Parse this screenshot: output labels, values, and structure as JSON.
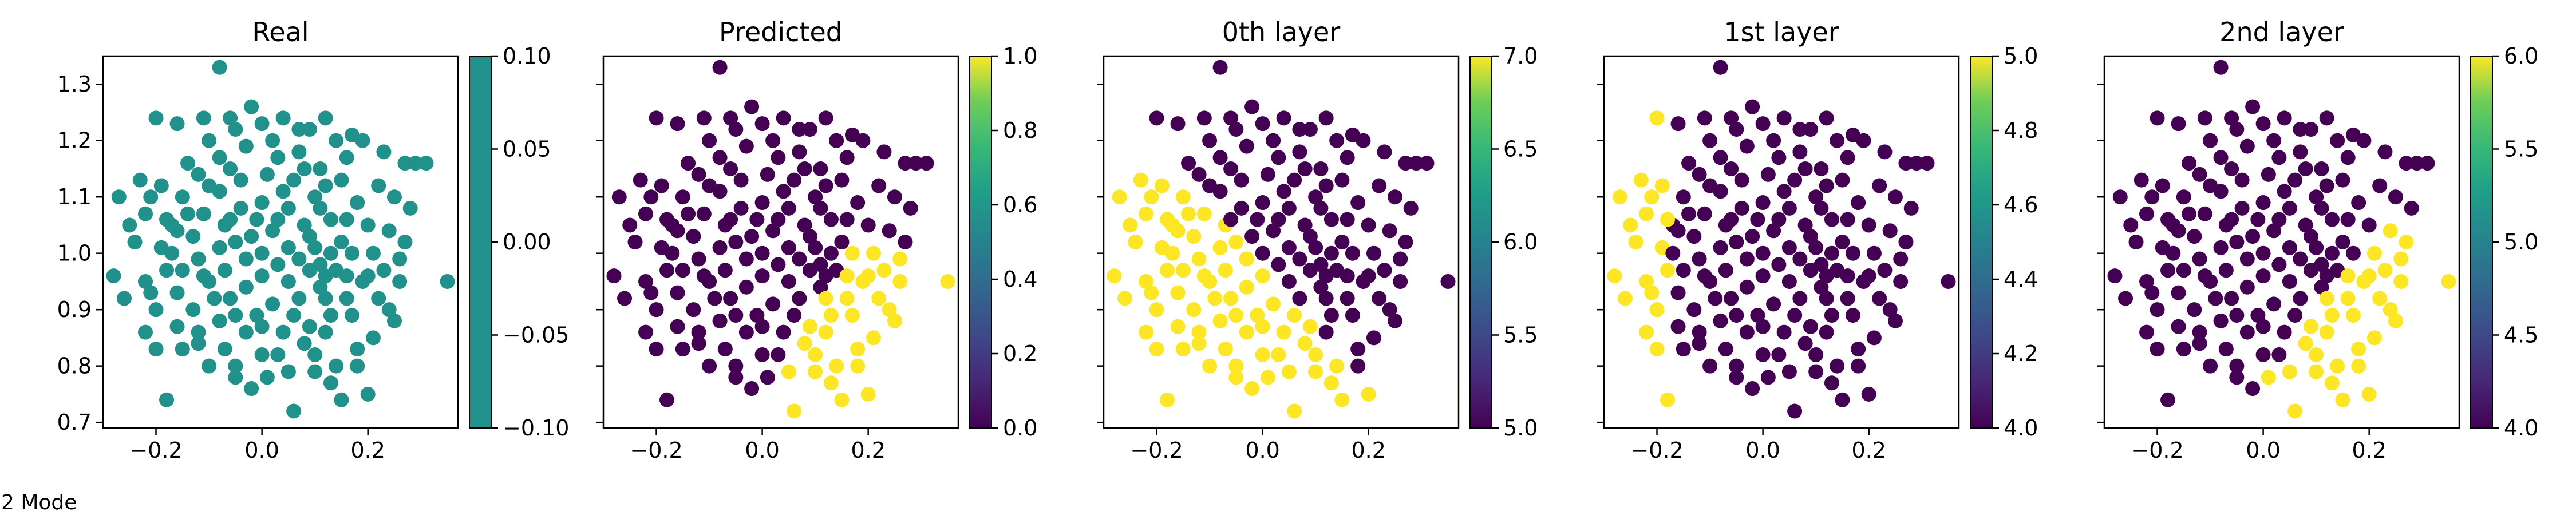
{
  "figure_caption": "2 Mode",
  "colors": {
    "viridis_low": "#440154",
    "viridis_mid": "#21918c",
    "viridis_high": "#fde725"
  },
  "chart_data": [
    {
      "type": "scatter",
      "title": "Real",
      "xlabel": "",
      "ylabel": "",
      "xlim": [
        -0.3,
        0.37
      ],
      "ylim": [
        0.69,
        1.35
      ],
      "xticks": [
        "−0.2",
        "0.0",
        "0.2"
      ],
      "yticks": [
        "0.7",
        "0.8",
        "0.9",
        "1.0",
        "1.1",
        "1.2",
        "1.3"
      ],
      "colorbar": {
        "range": [
          -0.1,
          0.1
        ],
        "ticks": [
          "−0.10",
          "−0.05",
          "0.00",
          "0.05",
          "0.10"
        ]
      },
      "coloring": "constant",
      "point_color": "#21918c"
    },
    {
      "type": "scatter",
      "title": "Predicted",
      "xlabel": "",
      "ylabel": "",
      "xlim": [
        -0.3,
        0.37
      ],
      "ylim": [
        0.69,
        1.35
      ],
      "xticks": [
        "−0.2",
        "0.0",
        "0.2"
      ],
      "colorbar": {
        "range": [
          0.0,
          1.0
        ],
        "ticks": [
          "0.0",
          "0.2",
          "0.4",
          "0.6",
          "0.8",
          "1.0"
        ]
      },
      "coloring": "two-class lower-right region yellow (cluster 1), rest purple (cluster 0)"
    },
    {
      "type": "scatter",
      "title": "0th layer",
      "xlabel": "",
      "ylabel": "",
      "xlim": [
        -0.3,
        0.37
      ],
      "ylim": [
        0.69,
        1.35
      ],
      "xticks": [
        "−0.2",
        "0.0",
        "0.2"
      ],
      "colorbar": {
        "range": [
          5.0,
          7.0
        ],
        "ticks": [
          "5.0",
          "5.5",
          "6.0",
          "6.5",
          "7.0"
        ]
      },
      "coloring": "lower-left half yellow (7), upper-right purple (5)"
    },
    {
      "type": "scatter",
      "title": "1st layer",
      "xlabel": "",
      "ylabel": "",
      "xlim": [
        -0.3,
        0.37
      ],
      "ylim": [
        0.69,
        1.35
      ],
      "xticks": [
        "−0.2",
        "0.0",
        "0.2"
      ],
      "colorbar": {
        "range": [
          4.0,
          5.0
        ],
        "ticks": [
          "4.0",
          "4.2",
          "4.4",
          "4.6",
          "4.8",
          "5.0"
        ]
      },
      "coloring": "left strip yellow (5), rest purple (4)"
    },
    {
      "type": "scatter",
      "title": "2nd layer",
      "xlabel": "",
      "ylabel": "",
      "xlim": [
        -0.3,
        0.37
      ],
      "ylim": [
        0.69,
        1.35
      ],
      "xticks": [
        "−0.2",
        "0.0",
        "0.2"
      ],
      "colorbar": {
        "range": [
          4.0,
          6.0
        ],
        "ticks": [
          "4.0",
          "4.5",
          "5.0",
          "5.5",
          "6.0"
        ]
      },
      "coloring": "lower-right region yellow (6), rest purple (4)"
    }
  ],
  "scatter_points": [
    [
      -0.08,
      1.33
    ],
    [
      -0.2,
      1.24
    ],
    [
      -0.16,
      1.23
    ],
    [
      -0.11,
      1.24
    ],
    [
      -0.05,
      1.22
    ],
    [
      0.04,
      1.24
    ],
    [
      0.09,
      1.22
    ],
    [
      0.14,
      1.2
    ],
    [
      0.19,
      1.2
    ],
    [
      0.23,
      1.18
    ],
    [
      0.29,
      1.16
    ],
    [
      0.31,
      1.16
    ],
    [
      0.27,
      1.16
    ],
    [
      -0.23,
      1.13
    ],
    [
      -0.27,
      1.1
    ],
    [
      -0.22,
      1.07
    ],
    [
      -0.17,
      1.05
    ],
    [
      -0.24,
      1.02
    ],
    [
      -0.28,
      0.96
    ],
    [
      -0.22,
      0.95
    ],
    [
      -0.26,
      0.92
    ],
    [
      -0.2,
      0.9
    ],
    [
      -0.22,
      0.86
    ],
    [
      -0.2,
      0.83
    ],
    [
      -0.15,
      0.83
    ],
    [
      -0.12,
      0.84
    ],
    [
      -0.1,
      0.8
    ],
    [
      -0.05,
      0.78
    ],
    [
      -0.02,
      0.76
    ],
    [
      0.03,
      0.82
    ],
    [
      0.05,
      0.79
    ],
    [
      0.1,
      0.82
    ],
    [
      0.14,
      0.8
    ],
    [
      0.18,
      0.83
    ],
    [
      0.21,
      0.85
    ],
    [
      0.25,
      0.88
    ],
    [
      0.26,
      0.95
    ],
    [
      0.35,
      0.95
    ],
    [
      0.2,
      0.96
    ],
    [
      -0.18,
      0.74
    ],
    [
      0.06,
      0.72
    ],
    [
      0.2,
      0.75
    ],
    [
      0.15,
      0.74
    ],
    [
      0.24,
      0.9
    ],
    [
      0.17,
      0.89
    ],
    [
      0.12,
      0.86
    ],
    [
      0.08,
      0.84
    ],
    [
      0.0,
      0.82
    ],
    [
      -0.03,
      0.86
    ],
    [
      -0.08,
      0.88
    ],
    [
      -0.13,
      0.9
    ],
    [
      -0.16,
      0.93
    ],
    [
      -0.18,
      0.97
    ],
    [
      -0.19,
      1.01
    ],
    [
      -0.18,
      1.06
    ],
    [
      -0.15,
      1.1
    ],
    [
      -0.12,
      1.14
    ],
    [
      -0.08,
      1.17
    ],
    [
      -0.03,
      1.19
    ],
    [
      0.02,
      1.2
    ],
    [
      0.07,
      1.18
    ],
    [
      0.11,
      1.15
    ],
    [
      0.15,
      1.13
    ],
    [
      0.18,
      1.09
    ],
    [
      0.2,
      1.05
    ],
    [
      0.21,
      1.0
    ],
    [
      0.19,
      0.95
    ],
    [
      0.16,
      0.92
    ],
    [
      0.13,
      0.89
    ],
    [
      0.09,
      0.87
    ],
    [
      0.04,
      0.86
    ],
    [
      -0.01,
      0.89
    ],
    [
      -0.06,
      0.92
    ],
    [
      -0.1,
      0.95
    ],
    [
      -0.12,
      0.99
    ],
    [
      -0.13,
      1.03
    ],
    [
      -0.11,
      1.07
    ],
    [
      -0.08,
      1.11
    ],
    [
      -0.04,
      1.13
    ],
    [
      0.01,
      1.14
    ],
    [
      0.06,
      1.13
    ],
    [
      0.1,
      1.1
    ],
    [
      0.13,
      1.06
    ],
    [
      0.15,
      1.02
    ],
    [
      0.14,
      0.97
    ],
    [
      0.11,
      0.94
    ],
    [
      0.07,
      0.92
    ],
    [
      0.02,
      0.91
    ],
    [
      -0.03,
      0.94
    ],
    [
      -0.07,
      0.97
    ],
    [
      -0.08,
      1.01
    ],
    [
      -0.07,
      1.05
    ],
    [
      -0.04,
      1.08
    ],
    [
      0.0,
      1.09
    ],
    [
      0.05,
      1.08
    ],
    [
      0.08,
      1.05
    ],
    [
      0.1,
      1.01
    ],
    [
      0.09,
      0.97
    ],
    [
      0.05,
      0.95
    ],
    [
      0.0,
      0.96
    ],
    [
      -0.03,
      0.99
    ],
    [
      -0.02,
      1.03
    ],
    [
      0.02,
      1.04
    ],
    [
      0.05,
      1.01
    ],
    [
      0.03,
      0.98
    ],
    [
      0.0,
      1.0
    ],
    [
      -0.14,
      1.16
    ],
    [
      -0.02,
      1.26
    ],
    [
      0.12,
      1.24
    ],
    [
      0.22,
      1.12
    ],
    [
      0.24,
      1.04
    ],
    [
      0.28,
      1.08
    ],
    [
      -0.25,
      1.05
    ],
    [
      -0.21,
      1.1
    ],
    [
      -0.1,
      1.2
    ],
    [
      0.07,
      1.22
    ],
    [
      0.16,
      1.17
    ],
    [
      0.23,
      0.97
    ],
    [
      0.22,
      0.92
    ],
    [
      0.1,
      0.79
    ],
    [
      -0.07,
      0.83
    ],
    [
      -0.16,
      0.87
    ],
    [
      -0.21,
      0.93
    ],
    [
      0.18,
      0.8
    ],
    [
      0.13,
      0.77
    ],
    [
      0.01,
      0.78
    ],
    [
      -0.05,
      0.8
    ],
    [
      -0.12,
      0.86
    ],
    [
      -0.19,
      1.12
    ],
    [
      -0.06,
      1.24
    ],
    [
      0.0,
      1.23
    ],
    [
      0.17,
      1.21
    ],
    [
      0.25,
      1.1
    ],
    [
      0.27,
      1.02
    ],
    [
      0.26,
      0.99
    ],
    [
      -0.15,
      0.97
    ],
    [
      -0.17,
      1.0
    ],
    [
      -0.16,
      1.04
    ],
    [
      -0.14,
      1.07
    ],
    [
      -0.1,
      1.12
    ],
    [
      -0.06,
      1.15
    ],
    [
      0.03,
      1.17
    ],
    [
      0.08,
      1.15
    ],
    [
      0.12,
      1.12
    ],
    [
      0.16,
      1.06
    ],
    [
      0.17,
      1.0
    ],
    [
      0.16,
      0.96
    ],
    [
      0.12,
      0.92
    ],
    [
      0.06,
      0.89
    ],
    [
      0.0,
      0.87
    ],
    [
      -0.05,
      0.89
    ],
    [
      -0.09,
      0.92
    ],
    [
      -0.11,
      0.96
    ],
    [
      0.04,
      1.11
    ],
    [
      0.11,
      1.08
    ],
    [
      0.13,
      1.0
    ],
    [
      0.12,
      0.96
    ],
    [
      -0.05,
      1.02
    ],
    [
      -0.06,
      1.06
    ],
    [
      0.07,
      0.99
    ],
    [
      0.11,
      0.98
    ],
    [
      0.09,
      1.03
    ],
    [
      -0.01,
      1.06
    ],
    [
      0.03,
      1.06
    ]
  ]
}
